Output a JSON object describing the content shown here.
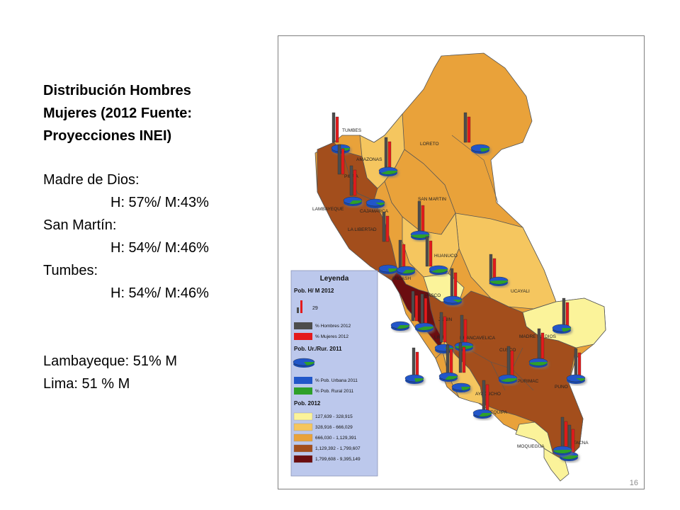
{
  "sidebar": {
    "title_lines": [
      "Distribución Hombres",
      "Mujeres (2012 Fuente:",
      "Proyecciones INEI)"
    ],
    "entries": [
      {
        "name": "Madre de Dios:",
        "value": "H: 57%/ M:43%"
      },
      {
        "name": "San Martín:",
        "value": "H: 54%/ M:46%"
      },
      {
        "name": "Tumbes:",
        "value": "H: 54%/ M:46%"
      }
    ],
    "notes": [
      "Lambayeque: 51% M",
      "Lima: 51 % M"
    ]
  },
  "map": {
    "regions": {
      "tumbes": "TUMBES",
      "loreto": "LORETO",
      "amazonas": "AMAZONAS",
      "piura": "PIURA",
      "san_martin": "SAN MARTIN",
      "lambayeque": "LAMBAYEQUE",
      "cajamarca": "CAJAMARCA",
      "la_libertad": "LA LIBERTAD",
      "huanuco": "HUANUCO",
      "ancash": "ANCASH",
      "ucayali": "UCAYALI",
      "pasco": "PASCO",
      "junin": "JUNIN",
      "lima": "LIMA",
      "huancavelica": "HUANCAVELICA",
      "madre_de_dios": "MADRE DE DIOS",
      "cusco": "CUSCO",
      "apurimac": "APURIMAC",
      "puno": "PUNO",
      "ica": "ICA",
      "ayacucho": "AYACUCHO",
      "arequipa": "AREQUIPA",
      "moquegua": "MOQUEGUA",
      "tacna": "TACNA"
    },
    "legend": {
      "title": "Leyenda",
      "sec1": "Pob. H/ M  2012",
      "sample_value": "29",
      "hombres": "% Hombres 2012",
      "mujeres": "% Mujeres 2012",
      "sec2": "Pob. Ur./Rur. 2011",
      "urbana": "% Pob. Urbana 2011",
      "rural": "% Pob. Rural 2011",
      "sec3": "Pob. 2012",
      "classes": [
        "127,639 - 328,915",
        "328,916 - 666,029",
        "666,030 - 1,129,391",
        "1,129,392 - 1,799,607",
        "1,799,608 - 9,395,149"
      ]
    },
    "colors": {
      "class1": "#fbf39a",
      "class2": "#f5c65f",
      "class3": "#e9a23a",
      "class4": "#a34e1c",
      "class5": "#6b0d10",
      "hombres": "#4d4d4d",
      "mujeres": "#e41a1c",
      "urbana": "#2157c9",
      "rural": "#2ea02a",
      "legend_bg": "#bcc8ec",
      "sea": "#ffffff"
    },
    "page_number": "16"
  }
}
